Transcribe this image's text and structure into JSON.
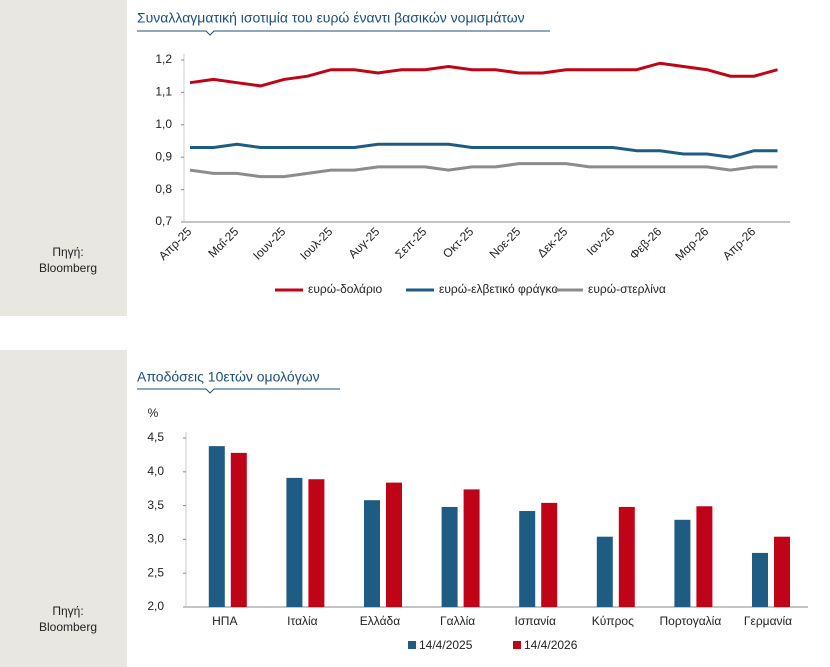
{
  "chart_data": [
    {
      "type": "line",
      "title": "Συναλλαγματική ισοτιμία του ευρώ έναντι βασικών νομισμάτων",
      "source": [
        "Πηγή:",
        "Bloomberg"
      ],
      "categories": [
        "Απρ-25",
        null,
        "Μαΐ-25",
        null,
        "Ιουν-25",
        null,
        "Ιουλ-25",
        null,
        "Αυγ-25",
        null,
        "Σεπ-25",
        null,
        "Οκτ-25",
        null,
        "Νοε-25",
        null,
        "Δεκ-25",
        null,
        "Ιαν-26",
        null,
        "Φεβ-26",
        null,
        "Μαρ-26",
        null,
        "Απρ-26",
        null
      ],
      "series": [
        {
          "name": "ευρώ-δολάριο",
          "color": "#c00418",
          "values": [
            1.13,
            1.14,
            1.13,
            1.12,
            1.14,
            1.15,
            1.17,
            1.17,
            1.16,
            1.17,
            1.17,
            1.18,
            1.17,
            1.17,
            1.16,
            1.16,
            1.17,
            1.17,
            1.17,
            1.17,
            1.19,
            1.18,
            1.17,
            1.15,
            1.15,
            1.17
          ]
        },
        {
          "name": "ευρώ-ελβετικό φράγκο",
          "color": "#1f5c84",
          "values": [
            0.93,
            0.93,
            0.94,
            0.93,
            0.93,
            0.93,
            0.93,
            0.93,
            0.94,
            0.94,
            0.94,
            0.94,
            0.93,
            0.93,
            0.93,
            0.93,
            0.93,
            0.93,
            0.93,
            0.92,
            0.92,
            0.91,
            0.91,
            0.9,
            0.92,
            0.92
          ]
        },
        {
          "name": "ευρώ-στερλίνα",
          "color": "#8c8c8c",
          "values": [
            0.86,
            0.85,
            0.85,
            0.84,
            0.84,
            0.85,
            0.86,
            0.86,
            0.87,
            0.87,
            0.87,
            0.86,
            0.87,
            0.87,
            0.88,
            0.88,
            0.88,
            0.87,
            0.87,
            0.87,
            0.87,
            0.87,
            0.87,
            0.86,
            0.87,
            0.87
          ]
        }
      ],
      "ylim": [
        0.7,
        1.2
      ],
      "yticks": [
        {
          "value": 0.7,
          "label": "0,7"
        },
        {
          "value": 0.8,
          "label": "0,8"
        },
        {
          "value": 0.9,
          "label": "0,9"
        },
        {
          "value": 1.0,
          "label": "1,0"
        },
        {
          "value": 1.1,
          "label": "1,1"
        },
        {
          "value": 1.2,
          "label": "1,2"
        }
      ]
    },
    {
      "type": "bar",
      "title": "Αποδόσεις 10ετών ομολόγων",
      "y_label": "%",
      "source": [
        "Πηγή:",
        "Bloomberg"
      ],
      "categories": [
        "ΗΠΑ",
        "Ιταλία",
        "Ελλάδα",
        "Γαλλία",
        "Ισπανία",
        "Κύπρος",
        "Πορτογαλία",
        "Γερμανία"
      ],
      "series": [
        {
          "name": "14/4/2025",
          "color": "#1f5c84",
          "values": [
            4.38,
            3.91,
            3.58,
            3.48,
            3.42,
            3.04,
            3.29,
            2.8
          ]
        },
        {
          "name": "14/4/2026",
          "color": "#c00418",
          "values": [
            4.28,
            3.89,
            3.84,
            3.74,
            3.54,
            3.48,
            3.49,
            3.04
          ]
        }
      ],
      "ylim": [
        2.0,
        4.5
      ],
      "yticks": [
        {
          "value": 2.0,
          "label": "2,0"
        },
        {
          "value": 2.5,
          "label": "2,5"
        },
        {
          "value": 3.0,
          "label": "3,0"
        },
        {
          "value": 3.5,
          "label": "3,5"
        },
        {
          "value": 4.0,
          "label": "4,0"
        },
        {
          "value": 4.5,
          "label": "4,5"
        }
      ]
    }
  ]
}
